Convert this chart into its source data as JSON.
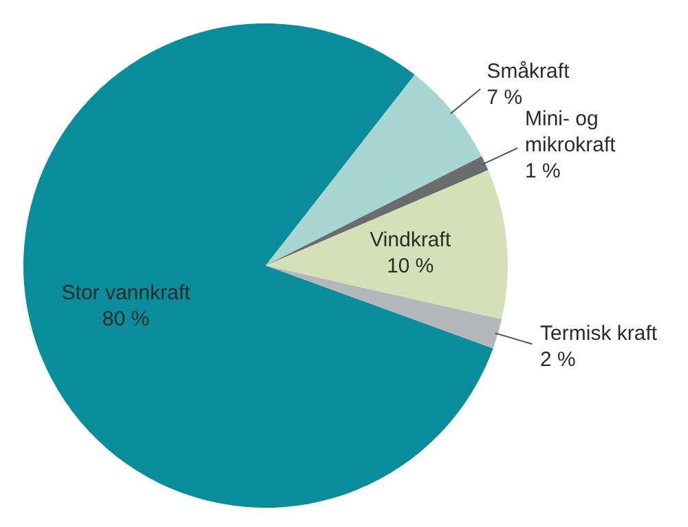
{
  "chart_data": {
    "type": "pie",
    "categories": [
      "Småkraft",
      "Mini- og mikrokraft",
      "Vindkraft",
      "Termisk kraft",
      "Stor vannkraft"
    ],
    "values": [
      7,
      1,
      10,
      2,
      80
    ],
    "value_labels": [
      "7 %",
      "1 %",
      "10 %",
      "2 %",
      "80 %"
    ],
    "colors": [
      "#a8d6d3",
      "#6a6c6e",
      "#d6e0b8",
      "#b5b8ba",
      "#0a8d9b"
    ],
    "legend": false
  }
}
